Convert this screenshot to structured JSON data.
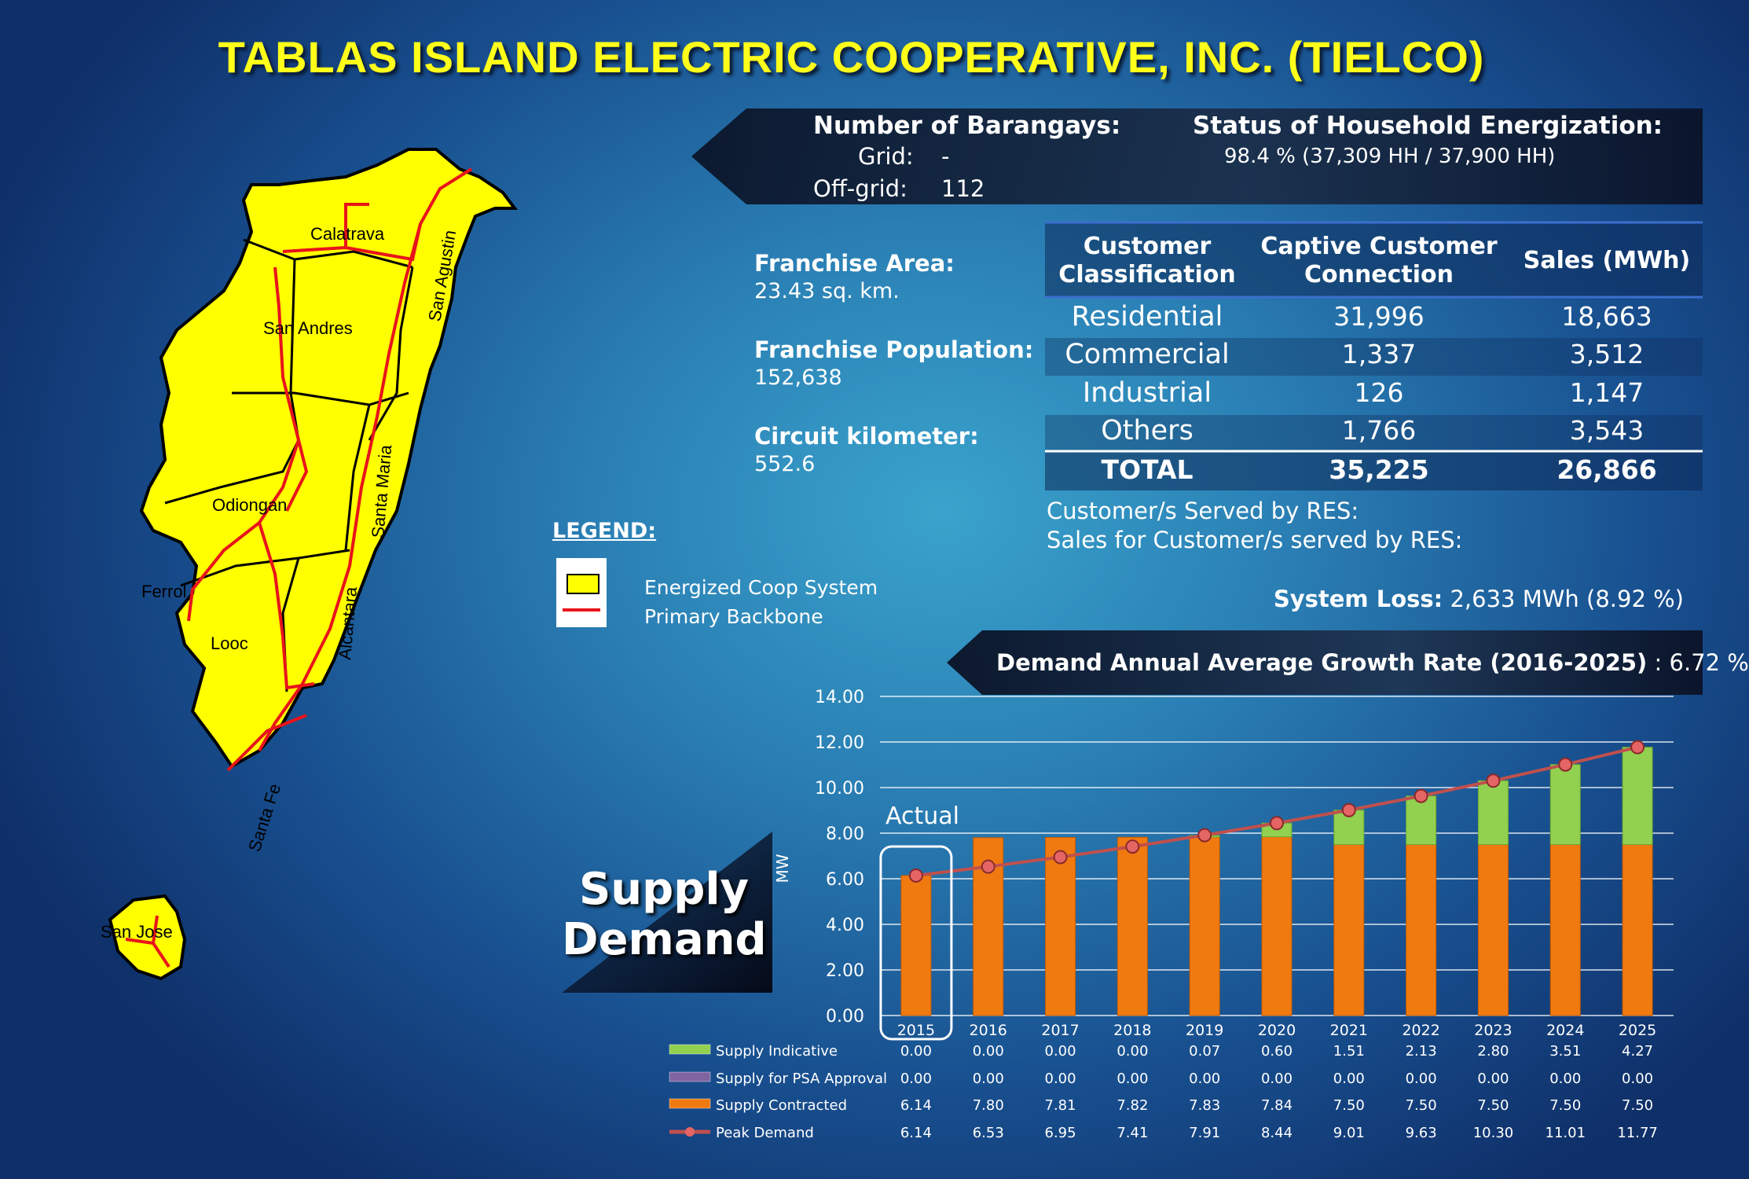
{
  "title": "TABLAS ISLAND ELECTRIC COOPERATIVE, INC. (TIELCO)",
  "barangays": {
    "label": "Number of Barangays:",
    "grid_label": "Grid:",
    "grid_value": "-",
    "offgrid_label": "Off-grid:",
    "offgrid_value": "112"
  },
  "energization": {
    "label": "Status of Household Energization:",
    "value": "98.4 % (37,309 HH /  37,900 HH)"
  },
  "franchise_area": {
    "label": "Franchise Area:",
    "value": "23.43 sq. km."
  },
  "franchise_population": {
    "label": "Franchise Population:",
    "value": "152,638"
  },
  "circuit_km": {
    "label": "Circuit kilometer:",
    "value": "552.6"
  },
  "table": {
    "headers": [
      "Customer Classification",
      "Captive Customer Connection",
      "Sales (MWh)"
    ],
    "header_lines": [
      [
        "Customer",
        "Classification"
      ],
      [
        "Captive Customer",
        "Connection"
      ],
      [
        "Sales (MWh)"
      ]
    ],
    "rows": [
      [
        "Residential",
        "31,996",
        "18,663"
      ],
      [
        "Commercial",
        "1,337",
        "3,512"
      ],
      [
        "Industrial",
        "126",
        "1,147"
      ],
      [
        "Others",
        "1,766",
        "3,543"
      ]
    ],
    "total": [
      "TOTAL",
      "35,225",
      "26,866"
    ]
  },
  "res": {
    "served": "Customer/s Served by RES:",
    "sales": "Sales for Customer/s served by RES:"
  },
  "system_loss": {
    "label": "System Loss:",
    "value": "2,633 MWh (8.92 %)"
  },
  "legend": {
    "title": "LEGEND:",
    "items": [
      "Energized Coop System",
      "Primary Backbone"
    ],
    "colors": {
      "coop": "#ffff00",
      "backbone": "#e8141a"
    }
  },
  "map_labels": [
    "Calatrava",
    "San Agustin",
    "San Andres",
    "Odiongan",
    "Santa Maria",
    "Ferrol",
    "Alcantara",
    "Looc",
    "Santa Fe",
    "San Jose"
  ],
  "growth": {
    "label": "Demand Annual Average Growth Rate (2016-2025)",
    "value": ": 6.72 %"
  },
  "supply_demand": [
    "Supply",
    "Demand"
  ],
  "actual_label": "Actual",
  "chart_data": {
    "type": "bar",
    "stacked": true,
    "ylabel": "MW",
    "ylim": [
      0,
      14
    ],
    "yticks": [
      "0.00",
      "2.00",
      "4.00",
      "6.00",
      "8.00",
      "10.00",
      "12.00",
      "14.00"
    ],
    "categories": [
      "2015",
      "2016",
      "2017",
      "2018",
      "2019",
      "2020",
      "2021",
      "2022",
      "2023",
      "2024",
      "2025"
    ],
    "series": [
      {
        "name": "Supply Indicative",
        "type": "bar",
        "color": "#92d050",
        "values": [
          0.0,
          0.0,
          0.0,
          0.0,
          0.07,
          0.6,
          1.51,
          2.13,
          2.8,
          3.51,
          4.27
        ],
        "labels": [
          "0.00",
          "0.00",
          "0.00",
          "0.00",
          "0.07",
          "0.60",
          "1.51",
          "2.13",
          "2.80",
          "3.51",
          "4.27"
        ]
      },
      {
        "name": "Supply for PSA Approval",
        "type": "bar",
        "color": "#8064a2",
        "values": [
          0.0,
          0.0,
          0.0,
          0.0,
          0.0,
          0.0,
          0.0,
          0.0,
          0.0,
          0.0,
          0.0
        ],
        "labels": [
          "0.00",
          "0.00",
          "0.00",
          "0.00",
          "0.00",
          "0.00",
          "0.00",
          "0.00",
          "0.00",
          "0.00",
          "0.00"
        ]
      },
      {
        "name": "Supply Contracted",
        "type": "bar",
        "color": "#f07a10",
        "values": [
          6.14,
          7.8,
          7.81,
          7.82,
          7.83,
          7.84,
          7.5,
          7.5,
          7.5,
          7.5,
          7.5
        ],
        "labels": [
          "6.14",
          "7.80",
          "7.81",
          "7.82",
          "7.83",
          "7.84",
          "7.50",
          "7.50",
          "7.50",
          "7.50",
          "7.50"
        ]
      },
      {
        "name": "Peak Demand",
        "type": "line",
        "color": "#c0504d",
        "values": [
          6.14,
          6.53,
          6.95,
          7.41,
          7.91,
          8.44,
          9.01,
          9.63,
          10.3,
          11.01,
          11.77
        ],
        "labels": [
          "6.14",
          "6.53",
          "6.95",
          "7.41",
          "7.91",
          "8.44",
          "9.01",
          "9.63",
          "10.30",
          "11.01",
          "11.77"
        ]
      }
    ]
  }
}
